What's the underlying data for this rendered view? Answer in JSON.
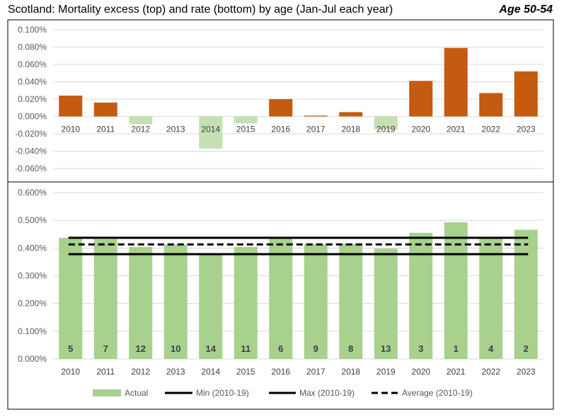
{
  "header": {
    "title": "Scotland: Mortality excess (top) and rate (bottom) by age (Jan-Jul each year)",
    "tag": "Age 50-54"
  },
  "colors": {
    "positive_bar": "#c55a11",
    "negative_bar": "#c5e0b4",
    "actual_bar": "#a9d18e",
    "line": "#000000",
    "grid": "#d9d9d9"
  },
  "chart_data": [
    {
      "type": "bar",
      "categories": [
        "2010",
        "2011",
        "2012",
        "2013",
        "2014",
        "2015",
        "2016",
        "2017",
        "2018",
        "2019",
        "2020",
        "2021",
        "2022",
        "2023"
      ],
      "values": [
        0.024,
        0.016,
        -0.009,
        0.0,
        -0.037,
        -0.008,
        0.02,
        0.001,
        0.005,
        -0.015,
        0.041,
        0.079,
        0.027,
        0.052
      ],
      "value_unit": "%",
      "ylim": [
        -0.06,
        0.1
      ],
      "yticks": [
        0.1,
        0.08,
        0.06,
        0.04,
        0.02,
        0.0,
        -0.02,
        -0.04,
        -0.06
      ],
      "ytick_labels": [
        "0.100%",
        "0.080%",
        "0.060%",
        "0.040%",
        "0.020%",
        "0.000%",
        "-0.020%",
        "-0.040%",
        "-0.060%"
      ],
      "grid": true
    },
    {
      "type": "bar",
      "categories": [
        "2010",
        "2011",
        "2012",
        "2013",
        "2014",
        "2015",
        "2016",
        "2017",
        "2018",
        "2019",
        "2020",
        "2021",
        "2022",
        "2023"
      ],
      "series": [
        {
          "name": "Actual",
          "values": [
            0.437,
            0.432,
            0.404,
            0.412,
            0.378,
            0.404,
            0.437,
            0.414,
            0.415,
            0.398,
            0.455,
            0.493,
            0.437,
            0.466
          ]
        },
        {
          "name": "Min (2010-19)",
          "value": 0.378
        },
        {
          "name": "Max (2010-19)",
          "value": 0.437
        },
        {
          "name": "Average (2010-19)",
          "value": 0.413
        }
      ],
      "data_labels": [
        "5",
        "7",
        "12",
        "10",
        "14",
        "11",
        "6",
        "9",
        "8",
        "13",
        "3",
        "1",
        "4",
        "2"
      ],
      "value_unit": "%",
      "ylim": [
        0.0,
        0.6
      ],
      "yticks": [
        0.6,
        0.5,
        0.4,
        0.3,
        0.2,
        0.1,
        0.0
      ],
      "ytick_labels": [
        "0.600%",
        "0.500%",
        "0.400%",
        "0.300%",
        "0.200%",
        "0.100%",
        "0.000%"
      ],
      "grid": true,
      "legend": {
        "position": "bottom",
        "items": [
          "Actual",
          "Min (2010-19)",
          "Max (2010-19)",
          "Average (2010-19)"
        ]
      }
    }
  ]
}
